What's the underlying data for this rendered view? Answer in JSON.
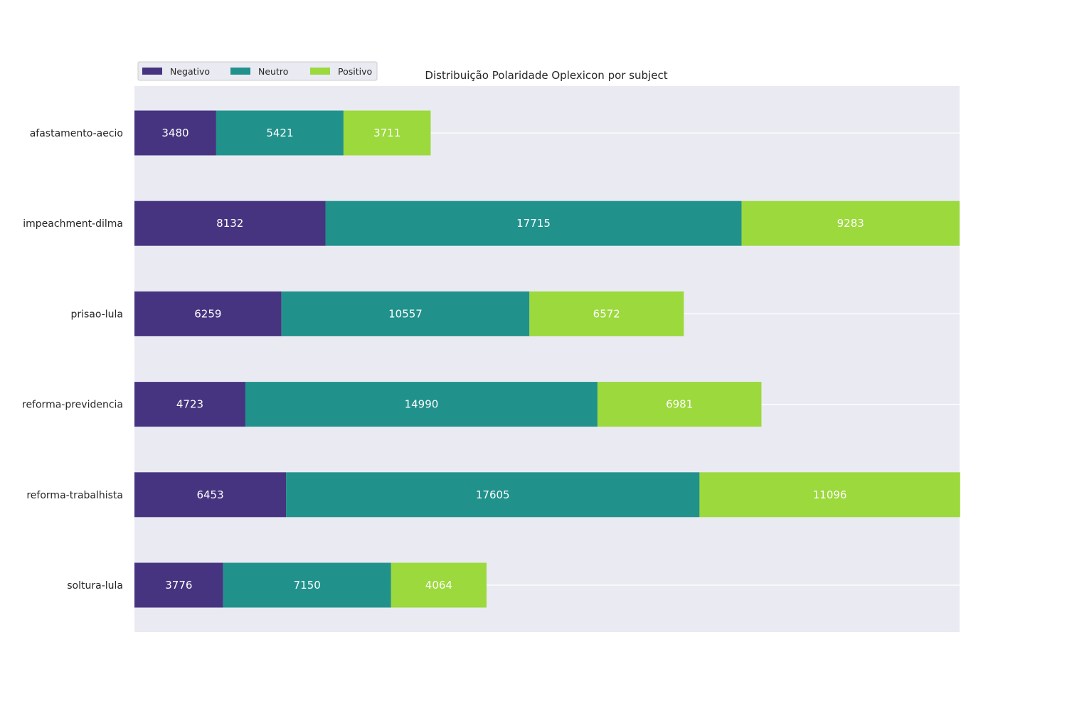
{
  "chart_data": {
    "type": "bar",
    "orientation": "horizontal",
    "stacked": true,
    "title": "Distribuição Polaridade Oplexicon por subject",
    "xlabel": "",
    "ylabel": "",
    "xlim": [
      0,
      35130
    ],
    "grid": true,
    "legend_position": "top-left",
    "categories": [
      "afastamento-aecio",
      "impeachment-dilma",
      "prisao-lula",
      "reforma-previdencia",
      "reforma-trabalhista",
      "soltura-lula"
    ],
    "series": [
      {
        "name": "Negativo",
        "color": "#463480",
        "values": [
          3480,
          8132,
          6259,
          4723,
          6453,
          3776
        ]
      },
      {
        "name": "Neutro",
        "color": "#21918c",
        "values": [
          5421,
          17715,
          10557,
          14990,
          17605,
          7150
        ]
      },
      {
        "name": "Positivo",
        "color": "#9bd93c",
        "values": [
          3711,
          9283,
          6572,
          6981,
          11096,
          4064
        ]
      }
    ]
  },
  "colors": {
    "plot_background": "#eaeaf2",
    "grid": "#ffffff",
    "value_text": "#ffffff"
  }
}
